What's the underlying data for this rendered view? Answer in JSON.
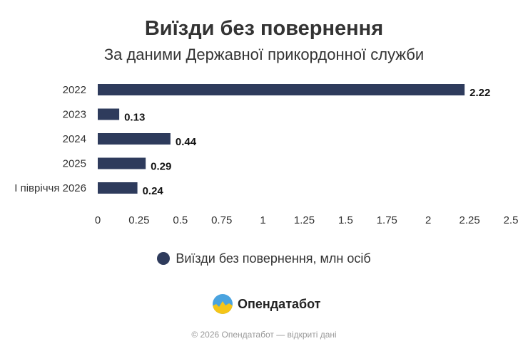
{
  "chart_data": {
    "type": "bar",
    "orientation": "horizontal",
    "title": "Виїзди без повернення",
    "subtitle": "За даними Державної прикордонної служби",
    "categories": [
      "2022",
      "2023",
      "2024",
      "2025",
      "I півріччя 2026"
    ],
    "series": [
      {
        "name": "Виїзди без повернення, млн осіб",
        "values": [
          2.22,
          0.13,
          0.44,
          0.29,
          0.24
        ],
        "color": "#2e3b5c"
      }
    ],
    "data_labels": [
      "2.22",
      "0.13",
      "0.44",
      "0.29",
      "0.24"
    ],
    "xlim": [
      0,
      2.5
    ],
    "x_ticks": [
      0,
      0.25,
      0.5,
      0.75,
      1,
      1.25,
      1.5,
      1.75,
      2,
      2.25,
      2.5
    ],
    "x_tick_labels": [
      "0",
      "0.25",
      "0.5",
      "0.75",
      "1",
      "1.25",
      "1.5",
      "1.75",
      "2",
      "2.25",
      "2.5"
    ],
    "xlabel": "",
    "ylabel": "",
    "grid": false,
    "legend_position": "bottom"
  },
  "brand": {
    "name": "Опендатабот",
    "logo_icon": "opendatabot-logo-icon"
  },
  "footer": {
    "text": "© 2026 Опендатабот — відкриті дані"
  }
}
